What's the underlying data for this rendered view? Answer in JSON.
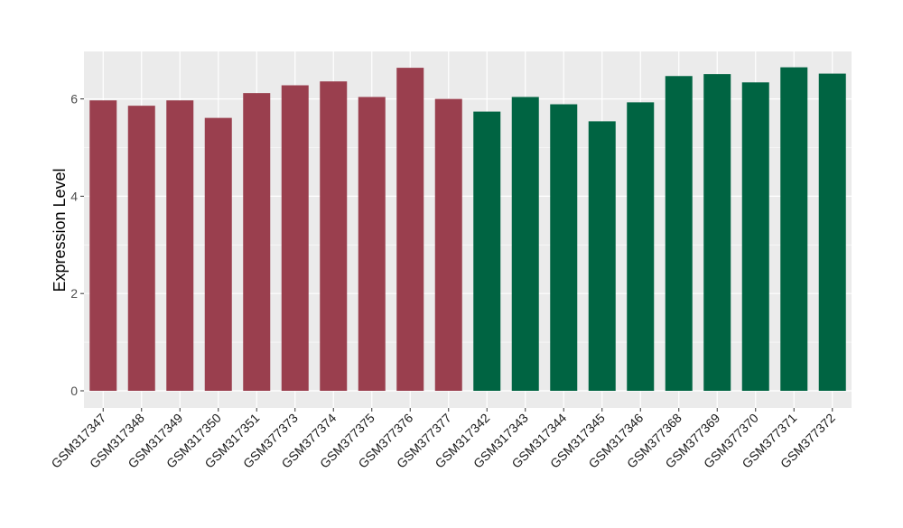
{
  "chart_data": {
    "type": "bar",
    "title": "",
    "xlabel": "",
    "ylabel": "Expression Level",
    "ylim": [
      -0.3,
      7
    ],
    "yticks": [
      0,
      2,
      4,
      6
    ],
    "grid": true,
    "categories": [
      "GSM317347",
      "GSM317348",
      "GSM317349",
      "GSM317350",
      "GSM317351",
      "GSM377373",
      "GSM377374",
      "GSM377375",
      "GSM377376",
      "GSM377377",
      "GSM317342",
      "GSM317343",
      "GSM317344",
      "GSM317345",
      "GSM317346",
      "GSM377368",
      "GSM377369",
      "GSM377370",
      "GSM377371",
      "GSM377372"
    ],
    "values": [
      5.97,
      5.86,
      5.97,
      5.61,
      6.12,
      6.28,
      6.36,
      6.04,
      6.64,
      6.0,
      5.74,
      6.04,
      5.89,
      5.54,
      5.93,
      6.47,
      6.51,
      6.34,
      6.65,
      6.52
    ],
    "groups": [
      0,
      0,
      0,
      0,
      0,
      0,
      0,
      0,
      0,
      0,
      1,
      1,
      1,
      1,
      1,
      1,
      1,
      1,
      1,
      1
    ],
    "group_colors": [
      "#9A3F4E",
      "#006442"
    ],
    "panel_background": "#EBEBEB"
  }
}
